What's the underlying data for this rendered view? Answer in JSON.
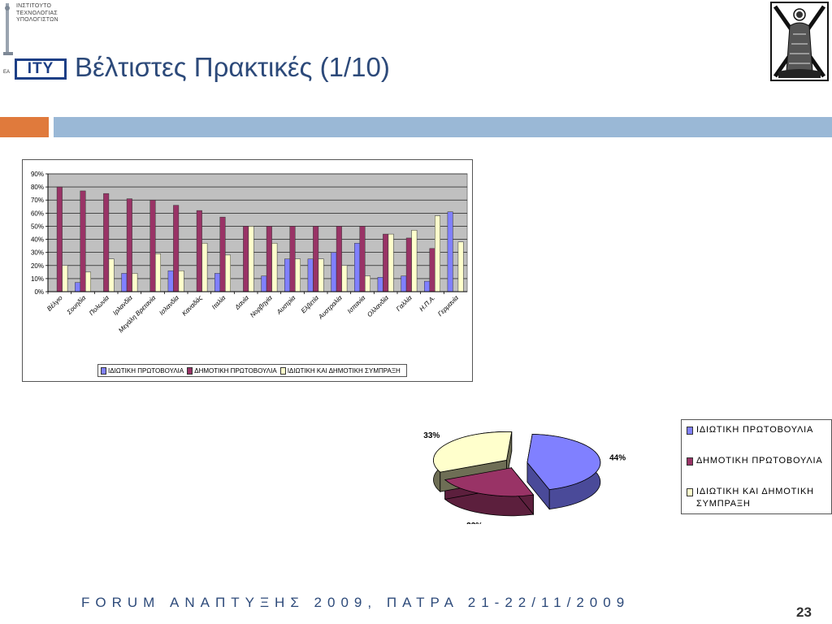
{
  "header": {
    "logo_lines": [
      "ΙΝΣΤΙΤΟΥΤΟ",
      "ΤΕΧΝΟΛΟΓΙΑΣ",
      "ΥΠΟΛΟΓΙΣΤΩΝ"
    ],
    "logo_text": "ITY",
    "logo_prefix": "EA",
    "title": "Βέλτιστες Πρακτικές (1/10)"
  },
  "colors": {
    "orange_bar": "#e07a3c",
    "blue_bar": "#9ab8d6",
    "series1": "#8080ff",
    "series2": "#993366",
    "series3": "#ffffcc",
    "plot_bg": "#c0c0c0",
    "title": "#2d4a7a"
  },
  "chart_data": [
    {
      "type": "bar",
      "categories": [
        "Βέλγιο",
        "Σουηδία",
        "Πολωνία",
        "Ιρλανδία",
        "Μεγάλη Βρετανία",
        "Ισλανδία",
        "Καναδάς",
        "Ιταλία",
        "Δανία",
        "Νορβηγία",
        "Αυστρία",
        "Ελβετία",
        "Αυστραλία",
        "Ισπανία",
        "Ολλανδία",
        "Γαλλία",
        "Η.Π.Α.",
        "Γερμανία"
      ],
      "series": [
        {
          "name": "ΙΔΙΩΤΙΚΗ ΠΡΩΤΟΒΟΥΛΙΑ",
          "values": [
            0,
            7,
            0,
            14,
            0,
            16,
            0,
            14,
            0,
            12,
            25,
            25,
            30,
            37,
            11,
            12,
            8,
            61
          ]
        },
        {
          "name": "ΔΗΜΟΤΙΚΗ ΠΡΩΤΟΒΟΥΛΙΑ",
          "values": [
            80,
            77,
            75,
            71,
            70,
            66,
            62,
            57,
            50,
            50,
            50,
            50,
            50,
            50,
            44,
            41,
            33,
            0
          ]
        },
        {
          "name": "ΙΔΙΩΤΙΚΗ ΚΑΙ ΔΗΜΟΤΙΚΗ ΣΥΜΠΡΑΞΗ",
          "values": [
            20,
            15,
            25,
            14,
            29,
            16,
            37,
            28,
            50,
            37,
            25,
            25,
            20,
            12,
            44,
            47,
            58,
            38
          ]
        }
      ],
      "yticks": [
        "0%",
        "10%",
        "20%",
        "30%",
        "40%",
        "50%",
        "60%",
        "70%",
        "80%",
        "90%"
      ],
      "ylim": [
        0,
        90
      ],
      "grid": true,
      "legend_position": "bottom"
    },
    {
      "type": "pie",
      "slices": [
        {
          "name": "ΙΔΙΩΤΙΚΗ ΠΡΩΤΟΒΟΥΛΙΑ",
          "value": 44,
          "label": "44%"
        },
        {
          "name": "ΔΗΜΟΤΙΚΗ ΠΡΩΤΟΒΟΥΛΙΑ",
          "value": 23,
          "label": "23%"
        },
        {
          "name": "ΙΔΙΩΤΙΚΗ ΚΑΙ ΔΗΜΟΤΙΚΗ ΣΥΜΠΡΑΞΗ",
          "value": 33,
          "label": "33%"
        }
      ],
      "legend": [
        "ΙΔΙΩΤΙΚΗ ΠΡΩΤΟΒΟΥΛΙΑ",
        "ΔΗΜΟΤΙΚΗ ΠΡΩΤΟΒΟΥΛΙΑ",
        "ΙΔΙΩΤΙΚΗ ΚΑΙ ΔΗΜΟΤΙΚΗ ΣΥΜΠΡΑΞΗ"
      ],
      "legend_position": "right",
      "style": "3d exploded"
    }
  ],
  "footer": {
    "text": "FORUM ΑΝΑΠΤΥΞΗΣ 2009, ΠΑΤΡΑ 21-22/11/2009",
    "page_number": "23"
  }
}
